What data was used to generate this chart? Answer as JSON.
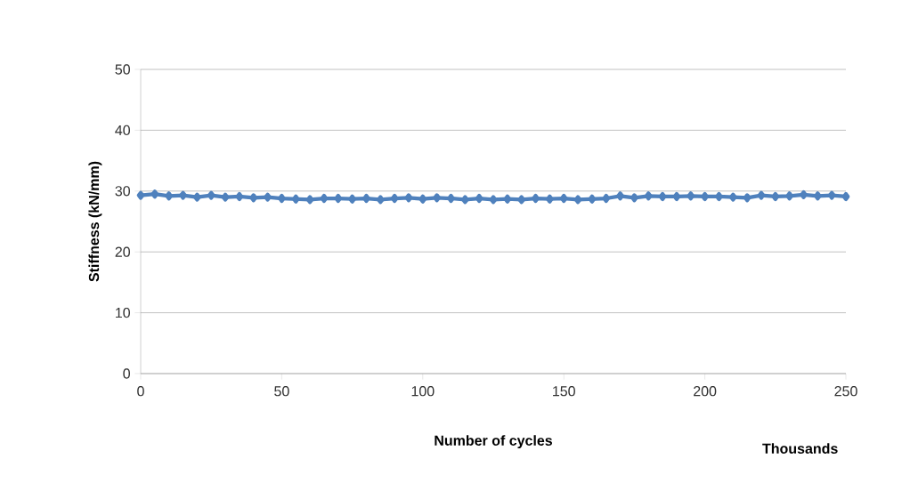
{
  "chart_data": {
    "type": "line",
    "xlabel": "Number of cycles",
    "ylabel": "Stiffness  (kN/mm)",
    "annotations": [
      "Thousands"
    ],
    "x": [
      0,
      5,
      10,
      15,
      20,
      25,
      30,
      35,
      40,
      45,
      50,
      55,
      60,
      65,
      70,
      75,
      80,
      85,
      90,
      95,
      100,
      105,
      110,
      115,
      120,
      125,
      130,
      135,
      140,
      145,
      150,
      155,
      160,
      165,
      170,
      175,
      180,
      185,
      190,
      195,
      200,
      205,
      210,
      215,
      220,
      225,
      230,
      235,
      240,
      245,
      250
    ],
    "series": [
      {
        "color": "#4f81bd",
        "values": [
          29.3,
          29.5,
          29.2,
          29.3,
          29.0,
          29.3,
          29.0,
          29.1,
          28.9,
          29.0,
          28.8,
          28.7,
          28.6,
          28.8,
          28.8,
          28.7,
          28.8,
          28.6,
          28.8,
          28.9,
          28.7,
          28.9,
          28.8,
          28.6,
          28.8,
          28.6,
          28.7,
          28.6,
          28.8,
          28.7,
          28.8,
          28.6,
          28.7,
          28.8,
          29.2,
          28.9,
          29.2,
          29.1,
          29.1,
          29.2,
          29.1,
          29.1,
          29.0,
          28.9,
          29.3,
          29.1,
          29.2,
          29.4,
          29.2,
          29.3,
          29.1
        ]
      }
    ],
    "xlim": [
      0,
      250
    ],
    "xticks": [
      0,
      50,
      100,
      150,
      200,
      250
    ],
    "ylim": [
      0,
      50
    ],
    "yticks": [
      0,
      10,
      20,
      30,
      40,
      50
    ],
    "grid": "y",
    "marker": "diamond",
    "line_style": "solid"
  }
}
